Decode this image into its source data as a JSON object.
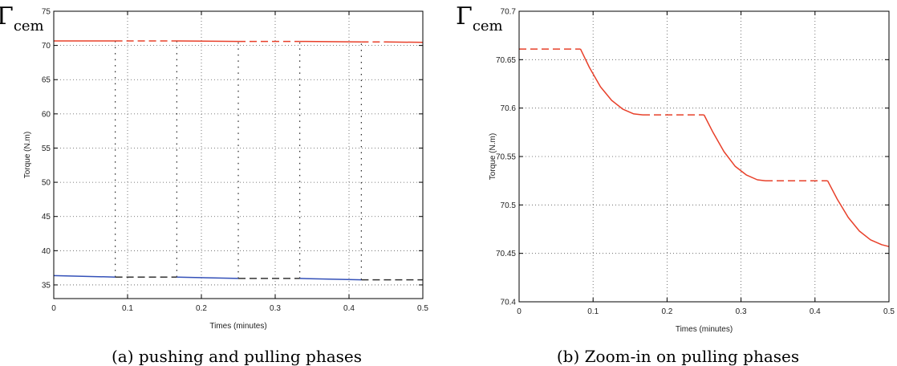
{
  "chart_data": [
    {
      "type": "line",
      "corner_label": {
        "main": "Γ",
        "sub": "cem"
      },
      "xlabel": "Times (minutes)",
      "ylabel": "Torque (N.m)",
      "xlim": [
        0,
        0.5
      ],
      "ylim": [
        33,
        75
      ],
      "xticks": [
        "0",
        "0.1",
        "0.2",
        "0.3",
        "0.4",
        "0.5"
      ],
      "yticks": [
        "35",
        "40",
        "45",
        "50",
        "55",
        "60",
        "65",
        "70",
        "75"
      ],
      "grid": true,
      "caption": "(a) pushing and pulling phases",
      "series": [
        {
          "color": "#e8402a",
          "style": "solid",
          "x": [
            0,
            0.0833
          ],
          "y": [
            70.66,
            70.66
          ]
        },
        {
          "color": "#e8402a",
          "style": "dashed",
          "x": [
            0.0833,
            0.1667
          ],
          "y": [
            70.66,
            70.66
          ]
        },
        {
          "color": "#e8402a",
          "style": "solid",
          "x": [
            0.1667,
            0.25
          ],
          "y": [
            70.66,
            70.59
          ]
        },
        {
          "color": "#e8402a",
          "style": "dashed",
          "x": [
            0.25,
            0.3333
          ],
          "y": [
            70.59,
            70.59
          ]
        },
        {
          "color": "#e8402a",
          "style": "solid",
          "x": [
            0.3333,
            0.4167
          ],
          "y": [
            70.59,
            70.52
          ]
        },
        {
          "color": "#e8402a",
          "style": "dashed",
          "x": [
            0.4167,
            0.45
          ],
          "y": [
            70.52,
            70.52
          ]
        },
        {
          "color": "#e8402a",
          "style": "solid",
          "x": [
            0.45,
            0.5
          ],
          "y": [
            70.52,
            70.45
          ]
        },
        {
          "color": "#3350b8",
          "style": "solid",
          "x": [
            0,
            0.0833
          ],
          "y": [
            36.35,
            36.15
          ]
        },
        {
          "color": "#333333",
          "style": "dashed",
          "x": [
            0.0833,
            0.1667
          ],
          "y": [
            36.15,
            36.15
          ]
        },
        {
          "color": "#3350b8",
          "style": "solid",
          "x": [
            0.1667,
            0.25
          ],
          "y": [
            36.15,
            35.95
          ]
        },
        {
          "color": "#333333",
          "style": "dashed",
          "x": [
            0.25,
            0.3333
          ],
          "y": [
            35.95,
            35.95
          ]
        },
        {
          "color": "#3350b8",
          "style": "solid",
          "x": [
            0.3333,
            0.4167
          ],
          "y": [
            35.95,
            35.75
          ]
        },
        {
          "color": "#333333",
          "style": "dashed",
          "x": [
            0.4167,
            0.5
          ],
          "y": [
            35.75,
            35.75
          ]
        }
      ],
      "vlines": [
        {
          "x": 0.0833,
          "y": [
            36.15,
            70.66
          ]
        },
        {
          "x": 0.1667,
          "y": [
            36.15,
            70.66
          ]
        },
        {
          "x": 0.25,
          "y": [
            35.95,
            70.59
          ]
        },
        {
          "x": 0.3333,
          "y": [
            35.95,
            70.59
          ]
        },
        {
          "x": 0.4167,
          "y": [
            35.75,
            70.52
          ]
        }
      ]
    },
    {
      "type": "line",
      "corner_label": {
        "main": "Γ",
        "sub": "cem"
      },
      "xlabel": "Times (minutes)",
      "ylabel": "Torque (N.m)",
      "xlim": [
        0,
        0.5
      ],
      "ylim": [
        70.4,
        70.7
      ],
      "xticks": [
        "0",
        "0.1",
        "0.2",
        "0.3",
        "0.4",
        "0.5"
      ],
      "yticks": [
        "70.4",
        "70.45",
        "70.5",
        "70.55",
        "70.6",
        "70.65",
        "70.7"
      ],
      "grid": true,
      "caption": "(b) Zoom-in on pulling phases",
      "series": [
        {
          "color": "#e8402a",
          "style": "dashed",
          "x": [
            0,
            0.083
          ],
          "y": [
            70.661,
            70.661
          ]
        },
        {
          "color": "#e8402a",
          "style": "solid",
          "x": [
            0.083,
            0.095,
            0.11,
            0.125,
            0.14,
            0.155,
            0.167
          ],
          "y": [
            70.661,
            70.642,
            70.622,
            70.608,
            70.599,
            70.594,
            70.593
          ]
        },
        {
          "color": "#e8402a",
          "style": "dashed",
          "x": [
            0.167,
            0.25
          ],
          "y": [
            70.593,
            70.593
          ]
        },
        {
          "color": "#e8402a",
          "style": "solid",
          "x": [
            0.25,
            0.262,
            0.277,
            0.292,
            0.307,
            0.322,
            0.333
          ],
          "y": [
            70.593,
            70.575,
            70.555,
            70.54,
            70.531,
            70.526,
            70.525
          ]
        },
        {
          "color": "#e8402a",
          "style": "dashed",
          "x": [
            0.333,
            0.417
          ],
          "y": [
            70.525,
            70.525
          ]
        },
        {
          "color": "#e8402a",
          "style": "solid",
          "x": [
            0.417,
            0.43,
            0.445,
            0.46,
            0.475,
            0.49,
            0.5
          ],
          "y": [
            70.525,
            70.506,
            70.487,
            70.473,
            70.464,
            70.459,
            70.457
          ]
        }
      ],
      "vlines": []
    }
  ]
}
